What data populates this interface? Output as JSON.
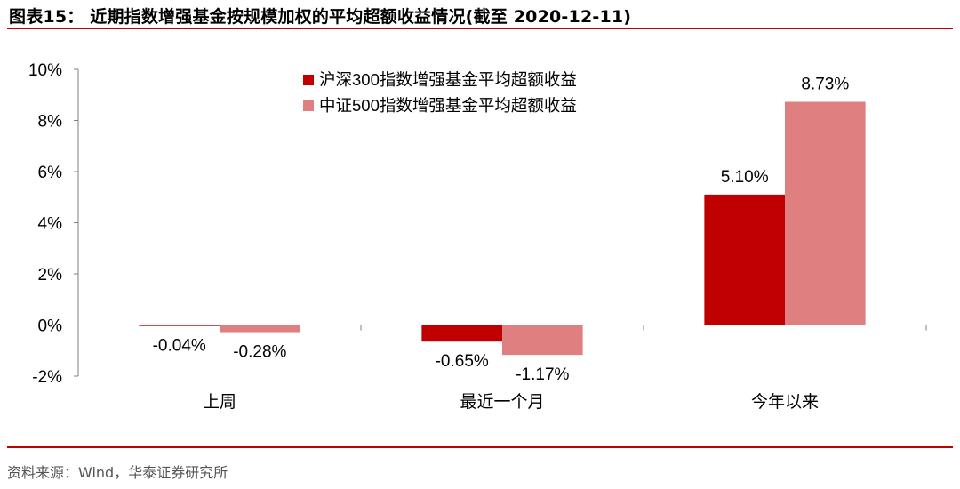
{
  "title": "图表15： 近期指数增强基金按规模加权的平均超额收益情况(截至 2020-12-11)",
  "source": "资料来源：Wind，华泰证券研究所",
  "colors": {
    "series1": "#c00000",
    "series2": "#e07f80",
    "rule": "#c00000"
  },
  "chart_data": {
    "type": "bar",
    "title": "",
    "xlabel": "",
    "ylabel": "",
    "categories": [
      "上周",
      "最近一个月",
      "今年以来"
    ],
    "series": [
      {
        "name": "沪深300指数增强基金平均超额收益",
        "values": [
          -0.04,
          -0.65,
          5.1
        ]
      },
      {
        "name": "中证500指数增强基金平均超额收益",
        "values": [
          -0.28,
          -1.17,
          8.73
        ]
      }
    ],
    "data_labels": [
      [
        "-0.04%",
        "-0.65%",
        "5.10%"
      ],
      [
        "-0.28%",
        "-1.17%",
        "8.73%"
      ]
    ],
    "ylim": [
      -2,
      10
    ],
    "yticks": [
      -2,
      0,
      2,
      4,
      6,
      8,
      10
    ],
    "ytick_labels": [
      "-2%",
      "0%",
      "2%",
      "4%",
      "6%",
      "8%",
      "10%"
    ],
    "grid": false,
    "legend_position": "top"
  }
}
